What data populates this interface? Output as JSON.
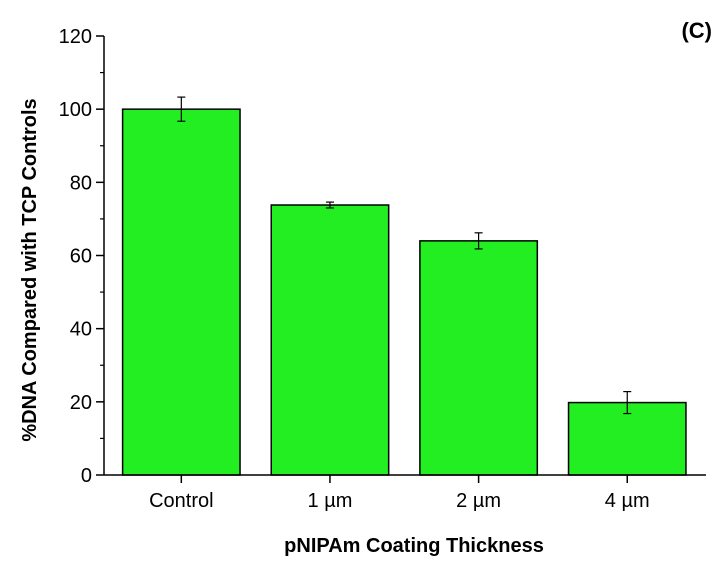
{
  "panel_label": "(C)",
  "chart_data": {
    "type": "bar",
    "categories": [
      "Control",
      "1 µm",
      "2 µm",
      "4 µm"
    ],
    "values": [
      100,
      73.8,
      64,
      19.8
    ],
    "errors": [
      3.3,
      0.8,
      2.2,
      3.0
    ],
    "xlabel": "pNIPAm Coating Thickness",
    "ylabel": "%DNA Compared with TCP Controls",
    "ylim": [
      0,
      120
    ],
    "yticks": [
      0,
      20,
      40,
      60,
      80,
      100,
      120
    ],
    "grid": false,
    "bar_color": "#22ee22",
    "bar_edge_color": "#000000"
  }
}
